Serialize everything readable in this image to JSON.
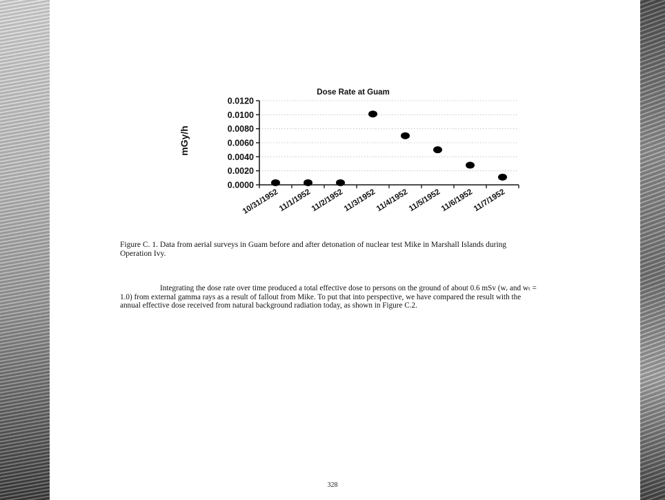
{
  "chart_data": {
    "type": "scatter",
    "title": "Dose Rate at Guam",
    "ylabel": "mGy/h",
    "xlabel": "",
    "categories": [
      "10/31/1952",
      "11/1/1952",
      "11/2/1952",
      "11/3/1952",
      "11/4/1952",
      "11/5/1952",
      "11/6/1952",
      "11/7/1952"
    ],
    "points": [
      {
        "x": "10/31/1952",
        "y": 0.0003
      },
      {
        "x": "11/1/1952",
        "y": 0.0003
      },
      {
        "x": "11/2/1952",
        "y": 0.0003
      },
      {
        "x": "11/3/1952",
        "y": 0.0101
      },
      {
        "x": "11/4/1952",
        "y": 0.007
      },
      {
        "x": "11/5/1952",
        "y": 0.005
      },
      {
        "x": "11/6/1952",
        "y": 0.0028
      },
      {
        "x": "11/7/1952",
        "y": 0.0011
      }
    ],
    "ylim": [
      0,
      0.012
    ],
    "yticks": [
      "0.0120",
      "0.0100",
      "0.0080",
      "0.0060",
      "0.0040",
      "0.0020",
      "0.0000"
    ],
    "ytick_values": [
      0.012,
      0.01,
      0.008,
      0.006,
      0.004,
      0.002,
      0.0
    ],
    "grid": true,
    "legend": "none",
    "marker_color": "#000000"
  },
  "document": {
    "caption": "Figure C. 1.  Data from aerial surveys in Guam before and after detonation of nuclear test Mike in Marshall Islands during Operation Ivy.",
    "paragraph": "Integrating the dose rate over time produced a total effective dose to persons on the ground of about 0.6 mSv (wᵣ and wₜ = 1.0) from external gamma rays as a result of fallout from Mike.  To put that into perspective, we have compared the result with the annual effective dose received from natural background radiation today, as shown in Figure C.2.",
    "page_number": "328"
  }
}
